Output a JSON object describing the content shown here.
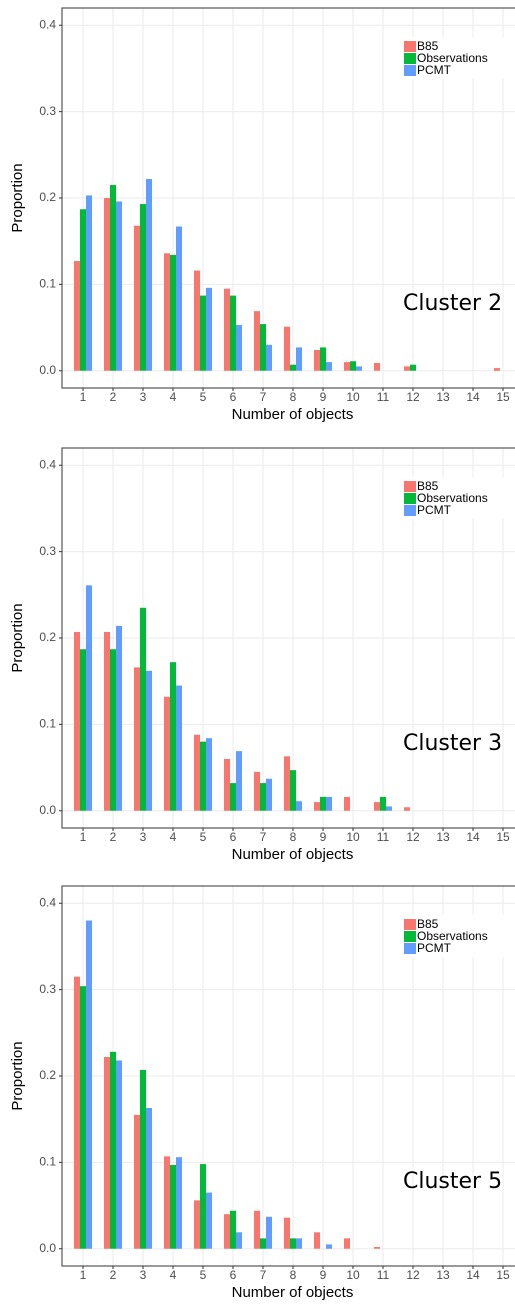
{
  "chart_data": [
    {
      "type": "bar",
      "annotation": "Cluster 2",
      "x_label": "Number of objects",
      "y_label": "Proportion",
      "categories": [
        "1",
        "2",
        "3",
        "4",
        "5",
        "6",
        "7",
        "8",
        "9",
        "10",
        "11",
        "12",
        "13",
        "14",
        "15"
      ],
      "series": [
        {
          "name": "B85",
          "color": "#F8766D",
          "values": [
            0.127,
            0.2,
            0.168,
            0.136,
            0.116,
            0.095,
            0.069,
            0.051,
            0.024,
            0.01,
            0.009,
            0.005,
            0,
            0,
            0.003
          ]
        },
        {
          "name": "Observations",
          "color": "#00BA38",
          "values": [
            0.187,
            0.215,
            0.193,
            0.134,
            0.087,
            0.087,
            0.054,
            0.007,
            0.027,
            0.011,
            0,
            0.007,
            0,
            0,
            0
          ]
        },
        {
          "name": "PCMT",
          "color": "#619CFF",
          "values": [
            0.203,
            0.196,
            0.222,
            0.167,
            0.096,
            0.053,
            0.03,
            0.027,
            0.01,
            0.005,
            0,
            0,
            0,
            0,
            0
          ]
        }
      ],
      "ylim": [
        -0.02,
        0.42
      ],
      "yticks": [
        {
          "value": 0,
          "label": "0.0"
        },
        0.1,
        0.2,
        0.3,
        0.4
      ],
      "grid": true,
      "legend": "top-right"
    },
    {
      "type": "bar",
      "annotation": "Cluster 3",
      "x_label": "Number of objects",
      "y_label": "Proportion",
      "categories": [
        "1",
        "2",
        "3",
        "4",
        "5",
        "6",
        "7",
        "8",
        "9",
        "10",
        "11",
        "12",
        "13",
        "14",
        "15"
      ],
      "series": [
        {
          "name": "B85",
          "color": "#F8766D",
          "values": [
            0.207,
            0.207,
            0.166,
            0.132,
            0.088,
            0.06,
            0.045,
            0.063,
            0.01,
            0.016,
            0.01,
            0.004,
            0,
            0,
            0
          ]
        },
        {
          "name": "Observations",
          "color": "#00BA38",
          "values": [
            0.187,
            0.187,
            0.235,
            0.172,
            0.08,
            0.032,
            0.032,
            0.047,
            0.016,
            0,
            0.016,
            0,
            0,
            0,
            0
          ]
        },
        {
          "name": "PCMT",
          "color": "#619CFF",
          "values": [
            0.261,
            0.214,
            0.162,
            0.145,
            0.084,
            0.069,
            0.037,
            0.011,
            0.016,
            0,
            0.005,
            0,
            0,
            0,
            0
          ]
        }
      ],
      "ylim": [
        -0.02,
        0.42
      ],
      "yticks": [
        {
          "value": 0,
          "label": "0.0"
        },
        0.1,
        0.2,
        0.3,
        0.4
      ],
      "grid": true,
      "legend": "top-right"
    },
    {
      "type": "bar",
      "annotation": "Cluster 5",
      "x_label": "Number of objects",
      "y_label": "Proportion",
      "categories": [
        "1",
        "2",
        "3",
        "4",
        "5",
        "6",
        "7",
        "8",
        "9",
        "10",
        "11",
        "12",
        "13",
        "14",
        "15"
      ],
      "series": [
        {
          "name": "B85",
          "color": "#F8766D",
          "values": [
            0.315,
            0.222,
            0.155,
            0.107,
            0.056,
            0.04,
            0.044,
            0.036,
            0.019,
            0.012,
            0.002,
            0,
            0,
            0,
            0
          ]
        },
        {
          "name": "Observations",
          "color": "#00BA38",
          "values": [
            0.304,
            0.228,
            0.207,
            0.097,
            0.098,
            0.044,
            0.012,
            0.012,
            0,
            0,
            0,
            0,
            0,
            0,
            0
          ]
        },
        {
          "name": "PCMT",
          "color": "#619CFF",
          "values": [
            0.38,
            0.218,
            0.163,
            0.106,
            0.065,
            0.019,
            0.037,
            0.012,
            0.005,
            0,
            0,
            0,
            0,
            0,
            0
          ]
        }
      ],
      "ylim": [
        -0.02,
        0.42
      ],
      "yticks": [
        {
          "value": 0,
          "label": "0.0"
        },
        0.1,
        0.2,
        0.3,
        0.4
      ],
      "grid": true,
      "legend": "top-right"
    }
  ]
}
